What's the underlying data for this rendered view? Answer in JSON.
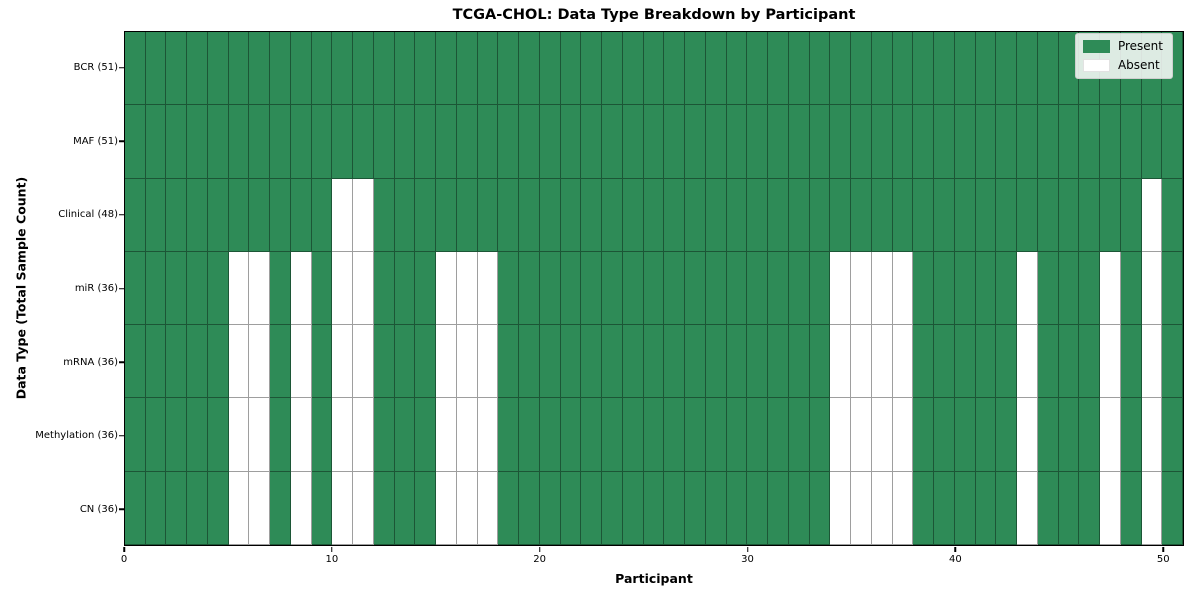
{
  "chart_data": {
    "type": "heatmap",
    "title": "TCGA-CHOL: Data Type Breakdown by Participant",
    "xlabel": "Participant",
    "ylabel": "Data Type (Total Sample Count)",
    "x_ticks": [
      0,
      10,
      20,
      30,
      40,
      50
    ],
    "x_max": 51,
    "n_participants": 51,
    "grid": true,
    "legend_position": "upper right",
    "rows": [
      {
        "name": "bcr",
        "label": "BCR (51)",
        "present_count": 51,
        "absent_participants": []
      },
      {
        "name": "maf",
        "label": "MAF (51)",
        "present_count": 51,
        "absent_participants": []
      },
      {
        "name": "clinical",
        "label": "Clinical (48)",
        "present_count": 48,
        "absent_participants": [
          10,
          11,
          49
        ]
      },
      {
        "name": "mir",
        "label": "miR (36)",
        "present_count": 36,
        "absent_participants": [
          5,
          6,
          8,
          10,
          11,
          15,
          16,
          17,
          34,
          35,
          36,
          37,
          43,
          47,
          49
        ]
      },
      {
        "name": "mrna",
        "label": "mRNA (36)",
        "present_count": 36,
        "absent_participants": [
          5,
          6,
          8,
          10,
          11,
          15,
          16,
          17,
          34,
          35,
          36,
          37,
          43,
          47,
          49
        ]
      },
      {
        "name": "methylation",
        "label": "Methylation (36)",
        "present_count": 36,
        "absent_participants": [
          5,
          6,
          8,
          10,
          11,
          15,
          16,
          17,
          34,
          35,
          36,
          37,
          43,
          47,
          49
        ]
      },
      {
        "name": "cn",
        "label": "CN (36)",
        "present_count": 36,
        "absent_participants": [
          5,
          6,
          8,
          10,
          11,
          15,
          16,
          17,
          34,
          35,
          36,
          37,
          43,
          47,
          49
        ]
      }
    ],
    "legend": [
      {
        "label": "Present",
        "color": "#2e8b57"
      },
      {
        "label": "Absent",
        "color": "#ffffff"
      }
    ],
    "colors": {
      "present": "#2e8b57",
      "absent": "#ffffff",
      "cell_edge": "rgba(0,0,0,0.38)",
      "spine": "#000000"
    }
  }
}
